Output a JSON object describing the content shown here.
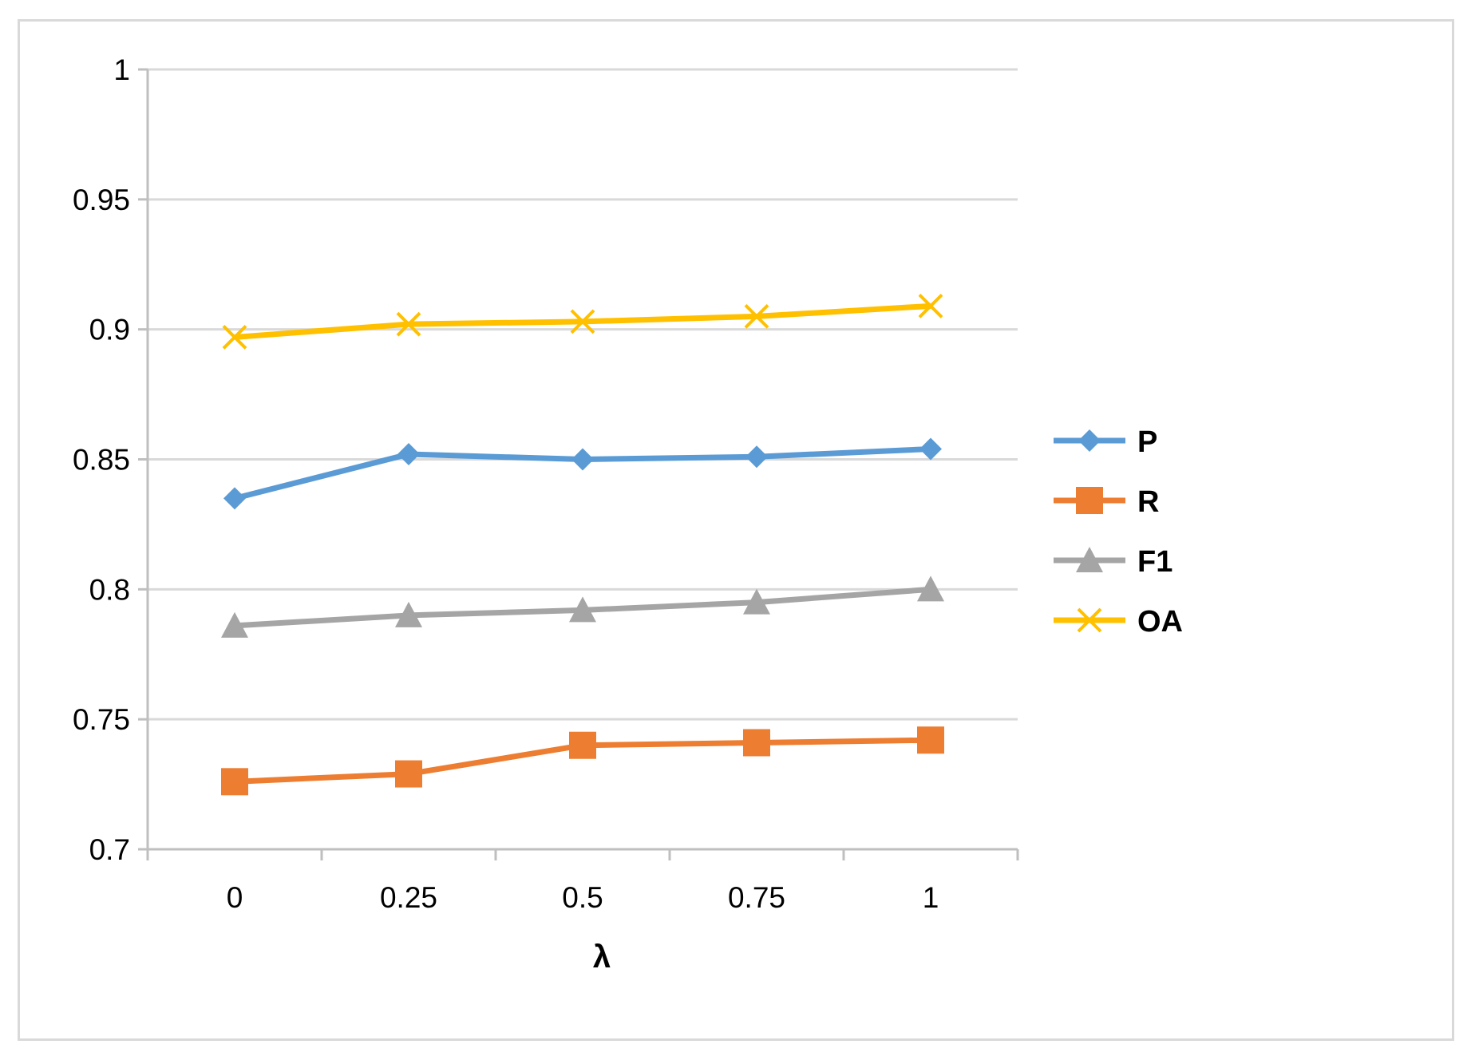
{
  "chart_data": {
    "type": "line",
    "title": "",
    "xlabel": "λ",
    "ylabel": "",
    "categories": [
      "0",
      "0.25",
      "0.5",
      "0.75",
      "1"
    ],
    "y_ticks": [
      "0.7",
      "0.75",
      "0.8",
      "0.85",
      "0.9",
      "0.95",
      "1"
    ],
    "ylim": [
      0.7,
      1.0
    ],
    "grid": true,
    "legend_position": "right",
    "series": [
      {
        "name": "P",
        "values": [
          0.835,
          0.852,
          0.85,
          0.851,
          0.854
        ],
        "color": "#5b9bd5",
        "marker": "diamond"
      },
      {
        "name": "R",
        "values": [
          0.726,
          0.729,
          0.74,
          0.741,
          0.742
        ],
        "color": "#ed7d31",
        "marker": "square"
      },
      {
        "name": "F1",
        "values": [
          0.786,
          0.79,
          0.792,
          0.795,
          0.8
        ],
        "color": "#a5a5a5",
        "marker": "triangle"
      },
      {
        "name": "OA",
        "values": [
          0.897,
          0.902,
          0.903,
          0.905,
          0.909
        ],
        "color": "#ffc000",
        "marker": "x"
      }
    ]
  }
}
